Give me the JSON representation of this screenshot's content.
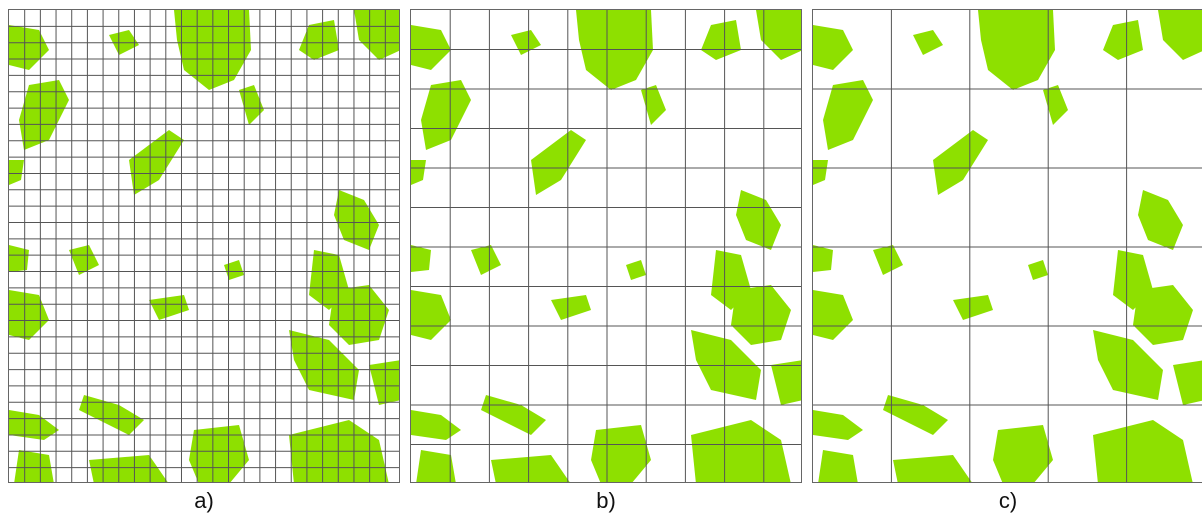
{
  "colors": {
    "vegetation": "#8ee000",
    "grid": "#555555",
    "background": "#ffffff"
  },
  "panels": [
    {
      "id": "a",
      "caption": "a)",
      "grid": {
        "cols": 25,
        "rows": 29
      }
    },
    {
      "id": "b",
      "caption": "b)",
      "grid": {
        "cols": 10,
        "rows": 12
      }
    },
    {
      "id": "c",
      "caption": "c)",
      "grid": {
        "cols": 5,
        "rows": 6
      }
    }
  ]
}
